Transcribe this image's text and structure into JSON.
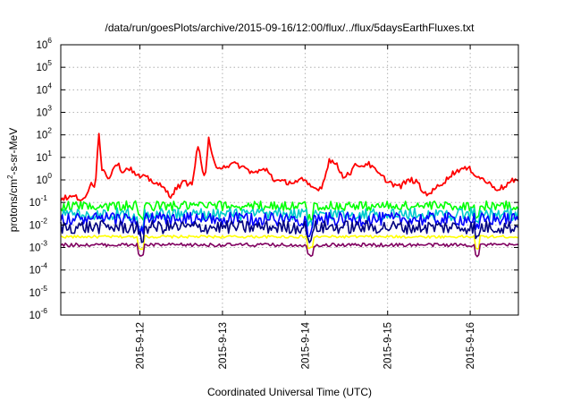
{
  "chart_data": {
    "type": "line",
    "title": "/data/run/goesPlots/archive/2015-09-16/12:00/flux/../flux/5daysEarthFluxes.txt",
    "xlabel": "Coordinated Universal Time (UTC)",
    "ylabel_main": "protons/cm",
    "ylabel_sup": "2",
    "ylabel_rest": "-s-sr-MeV",
    "y_scale": "log",
    "ylim": [
      1e-06,
      1000000.0
    ],
    "y_ticks": [
      {
        "base": "10",
        "exp": "-6"
      },
      {
        "base": "10",
        "exp": "-5"
      },
      {
        "base": "10",
        "exp": "-4"
      },
      {
        "base": "10",
        "exp": "-3"
      },
      {
        "base": "10",
        "exp": "-2"
      },
      {
        "base": "10",
        "exp": "-1"
      },
      {
        "base": "10",
        "exp": "0"
      },
      {
        "base": "10",
        "exp": "1"
      },
      {
        "base": "10",
        "exp": "2"
      },
      {
        "base": "10",
        "exp": "3"
      },
      {
        "base": "10",
        "exp": "4"
      },
      {
        "base": "10",
        "exp": "5"
      },
      {
        "base": "10",
        "exp": "6"
      }
    ],
    "x_start": "2015-09-11T01:00",
    "x_end": "2015-09-16T14:00",
    "x_ticks": [
      "2015-9-12",
      "2015-9-13",
      "2015-9-14",
      "2015-9-15",
      "2015-9-16"
    ],
    "x_tick_times": [
      "2015-09-12T00:00",
      "2015-09-13T00:00",
      "2015-09-14T00:00",
      "2015-09-15T00:00",
      "2015-09-16T00:00"
    ],
    "grid": true,
    "legend": "none",
    "series": [
      {
        "color": "#ff0000",
        "anchors": [
          [
            "2015-09-11T01:00",
            0.15
          ],
          [
            "2015-09-11T05:00",
            0.18
          ],
          [
            "2015-09-11T08:00",
            0.12
          ],
          [
            "2015-09-11T10:00",
            0.8
          ],
          [
            "2015-09-11T11:00",
            0.5
          ],
          [
            "2015-09-11T12:00",
            150
          ],
          [
            "2015-09-11T13:00",
            3
          ],
          [
            "2015-09-11T15:00",
            1.2
          ],
          [
            "2015-09-11T17:00",
            6
          ],
          [
            "2015-09-11T19:00",
            2.5
          ],
          [
            "2015-09-11T21:00",
            3.5
          ],
          [
            "2015-09-11T23:00",
            1.5
          ],
          [
            "2015-09-12T02:00",
            1.2
          ],
          [
            "2015-09-12T05:00",
            0.7
          ],
          [
            "2015-09-12T07:00",
            0.4
          ],
          [
            "2015-09-12T09:00",
            0.2
          ],
          [
            "2015-09-12T11:00",
            0.5
          ],
          [
            "2015-09-12T13:00",
            0.8
          ],
          [
            "2015-09-12T15:00",
            0.6
          ],
          [
            "2015-09-12T17:00",
            40
          ],
          [
            "2015-09-12T18:00",
            3
          ],
          [
            "2015-09-12T19:00",
            1.5
          ],
          [
            "2015-09-12T20:00",
            60
          ],
          [
            "2015-09-12T21:00",
            10
          ],
          [
            "2015-09-12T22:00",
            4
          ],
          [
            "2015-09-13T00:00",
            4
          ],
          [
            "2015-09-13T04:00",
            5
          ],
          [
            "2015-09-13T07:00",
            3
          ],
          [
            "2015-09-13T09:00",
            2
          ],
          [
            "2015-09-13T11:00",
            2.5
          ],
          [
            "2015-09-13T13:00",
            3
          ],
          [
            "2015-09-13T15:00",
            1
          ],
          [
            "2015-09-13T17:00",
            0.8
          ],
          [
            "2015-09-13T21:00",
            0.8
          ],
          [
            "2015-09-13T23:00",
            1
          ],
          [
            "2015-09-14T01:00",
            0.6
          ],
          [
            "2015-09-14T03:00",
            0.4
          ],
          [
            "2015-09-14T05:00",
            0.5
          ],
          [
            "2015-09-14T07:00",
            8
          ],
          [
            "2015-09-14T09:00",
            5
          ],
          [
            "2015-09-14T11:00",
            1.5
          ],
          [
            "2015-09-14T13:00",
            2
          ],
          [
            "2015-09-14T15:00",
            5
          ],
          [
            "2015-09-14T17:00",
            4
          ],
          [
            "2015-09-14T18:00",
            6
          ],
          [
            "2015-09-14T20:00",
            3
          ],
          [
            "2015-09-14T22:00",
            1.5
          ],
          [
            "2015-09-15T00:00",
            0.9
          ],
          [
            "2015-09-15T02:00",
            0.6
          ],
          [
            "2015-09-15T04:00",
            0.5
          ],
          [
            "2015-09-15T05:00",
            0.8
          ],
          [
            "2015-09-15T07:00",
            1
          ],
          [
            "2015-09-15T09:00",
            0.7
          ],
          [
            "2015-09-15T10:00",
            0.3
          ],
          [
            "2015-09-15T11:00",
            0.25
          ],
          [
            "2015-09-15T13:00",
            0.3
          ],
          [
            "2015-09-15T15:00",
            0.6
          ],
          [
            "2015-09-15T17:00",
            1
          ],
          [
            "2015-09-15T19:00",
            2
          ],
          [
            "2015-09-15T21:00",
            3
          ],
          [
            "2015-09-16T00:00",
            3
          ],
          [
            "2015-09-16T02:00",
            1.5
          ],
          [
            "2015-09-16T04:00",
            1
          ],
          [
            "2015-09-16T06:00",
            0.6
          ],
          [
            "2015-09-16T08:00",
            0.4
          ],
          [
            "2015-09-16T10:00",
            0.5
          ],
          [
            "2015-09-16T12:00",
            0.9
          ],
          [
            "2015-09-16T14:00",
            0.8
          ]
        ]
      },
      {
        "color": "#00ff00",
        "anchors": [
          [
            "2015-09-11T01:00",
            0.07
          ],
          [
            "2015-09-16T14:00",
            0.07
          ]
        ]
      },
      {
        "color": "#00cccc",
        "anchors": [
          [
            "2015-09-11T01:00",
            0.03
          ],
          [
            "2015-09-16T14:00",
            0.03
          ]
        ]
      },
      {
        "color": "#0000ff",
        "anchors": [
          [
            "2015-09-11T01:00",
            0.018
          ],
          [
            "2015-09-16T14:00",
            0.018
          ]
        ]
      },
      {
        "color": "#000080",
        "anchors": [
          [
            "2015-09-11T01:00",
            0.008
          ],
          [
            "2015-09-16T14:00",
            0.008
          ]
        ]
      },
      {
        "color": "#ffff00",
        "anchors": [
          [
            "2015-09-11T01:00",
            0.003
          ],
          [
            "2015-09-16T14:00",
            0.003
          ]
        ]
      },
      {
        "color": "#800060",
        "anchors": [
          [
            "2015-09-11T01:00",
            0.0013
          ],
          [
            "2015-09-16T14:00",
            0.0013
          ]
        ]
      }
    ]
  }
}
